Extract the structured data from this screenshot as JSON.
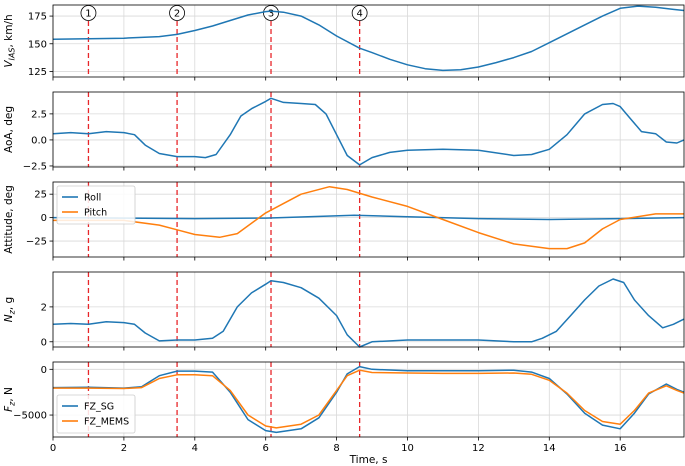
{
  "chart_data": [
    {
      "type": "line",
      "ylabel": "V_IAS, km/h",
      "ylabel_main": "V",
      "ylabel_sub": "IAS",
      "ylabel_rest": ", km/h",
      "xlim": [
        0,
        17.8
      ],
      "ylim": [
        120,
        185
      ],
      "yticks": [
        125,
        150,
        175
      ],
      "grid": true,
      "events": [
        {
          "label": "1",
          "x": 1.0
        },
        {
          "label": "2",
          "x": 3.5
        },
        {
          "label": "3",
          "x": 6.15
        },
        {
          "label": "4",
          "x": 8.65
        }
      ],
      "series": [
        {
          "color": "#1f77b4",
          "x": [
            0,
            1,
            2,
            3,
            3.5,
            4,
            4.5,
            5,
            5.5,
            6,
            6.15,
            6.5,
            7,
            7.5,
            8,
            8.65,
            9,
            9.5,
            10,
            10.5,
            11,
            11.5,
            12,
            12.5,
            13,
            13.5,
            14,
            14.5,
            15,
            15.5,
            16,
            16.5,
            17,
            17.5,
            17.8
          ],
          "y": [
            154,
            154.5,
            155,
            156.5,
            158.5,
            162,
            166,
            171,
            176,
            179,
            179.5,
            178.5,
            175,
            167,
            157,
            146,
            142,
            136,
            131,
            127.5,
            126,
            126.5,
            129,
            133,
            137.5,
            143,
            151,
            159,
            167,
            175,
            182,
            184,
            183,
            181,
            180
          ]
        }
      ]
    },
    {
      "type": "line",
      "ylabel": "AoA, deg",
      "xlim": [
        0,
        17.8
      ],
      "ylim": [
        -2.6,
        4.6
      ],
      "yticks": [
        -2.5,
        0.0,
        2.5
      ],
      "ytick_labels": [
        "−2.5",
        "0.0",
        "2.5"
      ],
      "grid": true,
      "series": [
        {
          "color": "#1f77b4",
          "x": [
            0,
            0.5,
            1,
            1.5,
            2,
            2.3,
            2.6,
            3,
            3.5,
            4,
            4.3,
            4.6,
            5,
            5.3,
            5.6,
            6,
            6.15,
            6.5,
            7,
            7.4,
            7.7,
            8,
            8.3,
            8.65,
            9,
            9.5,
            10,
            11,
            12,
            13,
            13.5,
            14,
            14.5,
            15,
            15.5,
            15.8,
            16,
            16.3,
            16.6,
            17,
            17.3,
            17.6,
            17.8
          ],
          "y": [
            0.6,
            0.7,
            0.6,
            0.8,
            0.7,
            0.5,
            -0.5,
            -1.3,
            -1.6,
            -1.6,
            -1.7,
            -1.4,
            0.5,
            2.3,
            3.0,
            3.7,
            4.0,
            3.6,
            3.5,
            3.4,
            2.5,
            0.5,
            -1.5,
            -2.4,
            -1.7,
            -1.2,
            -1.0,
            -0.9,
            -1.0,
            -1.5,
            -1.4,
            -0.9,
            0.5,
            2.5,
            3.4,
            3.5,
            3.2,
            2.0,
            0.8,
            0.6,
            -0.2,
            -0.3,
            0.0
          ]
        }
      ]
    },
    {
      "type": "line",
      "ylabel": "Attitude, deg",
      "xlim": [
        0,
        17.8
      ],
      "ylim": [
        -42,
        38
      ],
      "yticks": [
        -25,
        0,
        25
      ],
      "ytick_labels": [
        "−25",
        "0",
        "25"
      ],
      "grid": true,
      "legend": "top-left",
      "series": [
        {
          "name": "Roll",
          "color": "#1f77b4",
          "x": [
            0,
            2,
            4,
            6,
            8.5,
            10,
            12,
            14,
            16,
            17.8
          ],
          "y": [
            0,
            -0.5,
            -1,
            -0.5,
            2.5,
            1,
            -1,
            -2,
            -1,
            0
          ]
        },
        {
          "name": "Pitch",
          "color": "#ff7f0e",
          "x": [
            0,
            2,
            3,
            3.5,
            4,
            4.7,
            5.2,
            6,
            7,
            7.8,
            8.3,
            9,
            10,
            11,
            12,
            13,
            14,
            14.5,
            15,
            15.5,
            16,
            17,
            17.8
          ],
          "y": [
            -3,
            -3,
            -8,
            -13,
            -18,
            -21,
            -17,
            5,
            25,
            33,
            30,
            22,
            12,
            -2,
            -16,
            -28,
            -33,
            -33,
            -27,
            -12,
            -2,
            4,
            4
          ]
        }
      ]
    },
    {
      "type": "line",
      "ylabel": "N_z, g",
      "ylabel_main": "N",
      "ylabel_sub": "z",
      "ylabel_rest": ", g",
      "xlim": [
        0,
        17.8
      ],
      "ylim": [
        -0.3,
        4.0
      ],
      "yticks": [
        0,
        2
      ],
      "grid": true,
      "series": [
        {
          "color": "#1f77b4",
          "x": [
            0,
            0.5,
            1,
            1.5,
            2,
            2.3,
            2.6,
            3,
            3.5,
            4,
            4.5,
            4.8,
            5.2,
            5.6,
            6,
            6.15,
            6.5,
            7,
            7.5,
            8,
            8.3,
            8.65,
            9,
            10,
            11,
            12,
            13,
            13.5,
            13.8,
            14.2,
            14.6,
            15,
            15.4,
            15.8,
            16.1,
            16.4,
            16.8,
            17.2,
            17.5,
            17.8
          ],
          "y": [
            1.0,
            1.05,
            1.0,
            1.15,
            1.1,
            1.0,
            0.5,
            0.05,
            0.1,
            0.1,
            0.2,
            0.6,
            2.0,
            2.8,
            3.3,
            3.5,
            3.4,
            3.1,
            2.5,
            1.5,
            0.4,
            -0.3,
            0.0,
            0.1,
            0.1,
            0.1,
            0.0,
            0.0,
            0.2,
            0.6,
            1.5,
            2.4,
            3.2,
            3.6,
            3.4,
            2.4,
            1.5,
            0.8,
            1.0,
            1.3
          ]
        }
      ]
    },
    {
      "type": "line",
      "ylabel": "F_z, N",
      "ylabel_main": "F",
      "ylabel_sub": "z",
      "ylabel_rest": ", N",
      "xlabel": "Time, s",
      "xlim": [
        0,
        17.8
      ],
      "ylim": [
        -7400,
        800
      ],
      "yticks": [
        -5000,
        0
      ],
      "ytick_labels": [
        "−5000",
        "0"
      ],
      "xticks": [
        0,
        2,
        4,
        6,
        8,
        10,
        12,
        14,
        16
      ],
      "grid": true,
      "legend": "bottom-left",
      "series": [
        {
          "name": "FZ_SG",
          "color": "#1f77b4",
          "x": [
            0,
            1,
            2,
            2.5,
            3,
            3.5,
            4,
            4.5,
            5,
            5.5,
            6,
            6.3,
            7,
            7.5,
            8,
            8.3,
            8.65,
            9,
            10,
            11,
            12,
            13,
            13.5,
            14,
            14.5,
            15,
            15.5,
            16,
            16.4,
            16.8,
            17.3,
            17.6,
            17.8
          ],
          "y": [
            -2000,
            -1950,
            -2050,
            -1900,
            -700,
            -200,
            -200,
            -300,
            -2500,
            -5500,
            -6700,
            -6900,
            -6500,
            -5300,
            -2500,
            -500,
            300,
            0,
            -150,
            -150,
            -150,
            -100,
            -300,
            -1000,
            -2700,
            -4800,
            -6100,
            -6500,
            -4800,
            -2700,
            -1600,
            -2200,
            -2500
          ]
        },
        {
          "name": "FZ_MEMS",
          "color": "#ff7f0e",
          "x": [
            0,
            1,
            2,
            2.5,
            3,
            3.5,
            4,
            4.5,
            5,
            5.5,
            6,
            6.3,
            7,
            7.5,
            8,
            8.3,
            8.65,
            9,
            10,
            11,
            12,
            13,
            13.5,
            14,
            14.5,
            15,
            15.5,
            16,
            16.4,
            16.8,
            17.3,
            17.6,
            17.8
          ],
          "y": [
            -2050,
            -2050,
            -2100,
            -2000,
            -1000,
            -600,
            -600,
            -700,
            -2300,
            -5000,
            -6200,
            -6400,
            -6000,
            -5000,
            -2300,
            -700,
            -100,
            -350,
            -400,
            -450,
            -450,
            -400,
            -550,
            -1200,
            -2600,
            -4500,
            -5700,
            -6000,
            -4500,
            -2600,
            -1800,
            -2300,
            -2600
          ]
        }
      ]
    }
  ]
}
